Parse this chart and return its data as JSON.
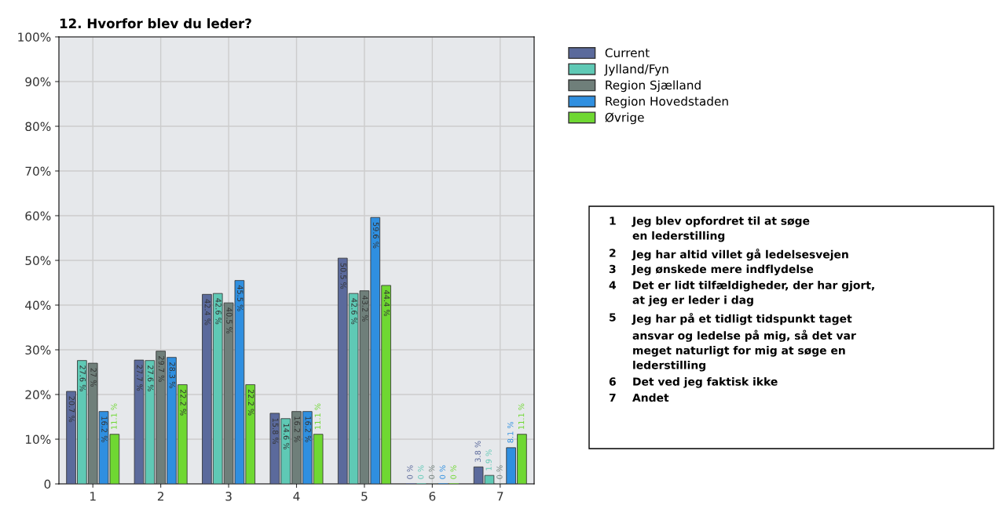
{
  "chart_data": {
    "type": "bar",
    "title": "12. Hvorfor blev du leder?",
    "categories": [
      "1",
      "2",
      "3",
      "4",
      "5",
      "6",
      "7"
    ],
    "series": [
      {
        "name": "Current",
        "color": "#5b6a9c",
        "values": [
          20.7,
          27.7,
          42.4,
          15.8,
          50.5,
          0,
          3.8
        ],
        "value_labels": [
          "20.7 %",
          "27.7 %",
          "42.4 %",
          "15.8 %",
          "50.5 %",
          "0 %",
          "3.8 %"
        ]
      },
      {
        "name": "Jylland/Fyn",
        "color": "#5fc9b5",
        "values": [
          27.6,
          27.6,
          42.6,
          14.6,
          42.6,
          0,
          1.9
        ],
        "value_labels": [
          "27.6 %",
          "27.6 %",
          "42.6 %",
          "14.6 %",
          "42.6 %",
          "0 %",
          "1.9 %"
        ]
      },
      {
        "name": "Region Sjælland",
        "color": "#6f7f7a",
        "values": [
          27,
          29.7,
          40.5,
          16.2,
          43.2,
          0,
          0
        ],
        "value_labels": [
          "27 %",
          "29.7 %",
          "40.5 %",
          "16.2 %",
          "43.2 %",
          "0 %",
          "0 %"
        ]
      },
      {
        "name": "Region Hovedstaden",
        "color": "#2f8fe0",
        "values": [
          16.2,
          28.3,
          45.5,
          16.2,
          59.6,
          0,
          8.1
        ],
        "value_labels": [
          "16.2 %",
          "28.3 %",
          "45.5 %",
          "16.2 %",
          "59.6 %",
          "0 %",
          "8.1 %"
        ]
      },
      {
        "name": "Øvrige",
        "color": "#6fd832",
        "values": [
          11.1,
          22.2,
          22.2,
          11.1,
          44.4,
          0,
          11.1
        ],
        "value_labels": [
          "11.1 %",
          "22.2 %",
          "22.2 %",
          "11.1 %",
          "44.4 %",
          "0 %",
          "11.1 %"
        ]
      }
    ],
    "ylim": [
      0,
      100
    ],
    "yticks": [
      0,
      {
        "value": 10,
        "label": "10%"
      },
      {
        "value": 20,
        "label": "20%"
      },
      {
        "value": 30,
        "label": "30%"
      },
      {
        "value": 40,
        "label": "40%"
      },
      {
        "value": 50,
        "label": "50%"
      },
      {
        "value": 60,
        "label": "60%"
      },
      {
        "value": 70,
        "label": "70%"
      },
      {
        "value": 80,
        "label": "80%"
      },
      {
        "value": 90,
        "label": "90%"
      },
      {
        "value": 100,
        "label": "100%"
      }
    ],
    "grid": true,
    "legend": "right",
    "annotations": [
      "1\tJeg blev opfordret til at søge\nen lederstilling",
      "2\tJeg har altid villet gå ledelsesvejen",
      "3\tJeg ønskede mere indflydelse",
      "4\tDet er lidt tilfældigheder, der har gjort,\nat jeg er leder i dag",
      "5\tJeg har på et tidligt tidspunkt taget\nansvar og ledelse på mig, så det var\nmeget naturligt for mig at søge en\nlederstilling",
      "6\tDet ved jeg faktisk ikke",
      "7\tAndet"
    ]
  }
}
